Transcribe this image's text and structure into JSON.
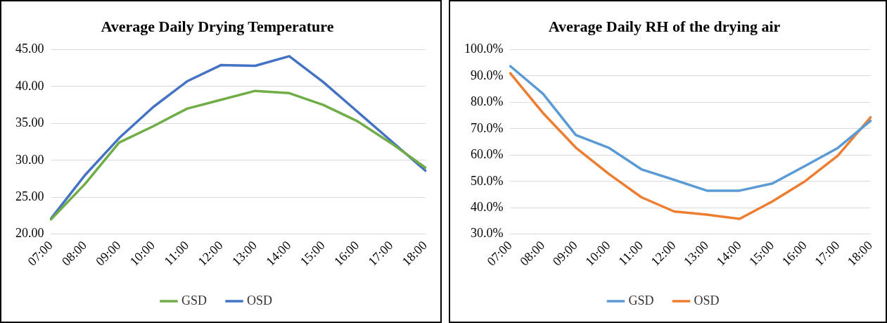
{
  "chart_data": [
    {
      "type": "line",
      "title": "Average Daily Drying Temperature",
      "categories": [
        "07:00",
        "08:00",
        "09:00",
        "10:00",
        "11:00",
        "12:00",
        "13:00",
        "14:00",
        "15:00",
        "16:00",
        "17:00",
        "18:00"
      ],
      "series": [
        {
          "name": "GSD",
          "color": "#70ad47",
          "values": [
            22.0,
            26.8,
            32.4,
            34.6,
            37.0,
            38.2,
            39.4,
            39.1,
            37.5,
            35.3,
            32.3,
            29.0
          ]
        },
        {
          "name": "OSD",
          "color": "#4472c4",
          "values": [
            22.1,
            28.0,
            33.0,
            37.2,
            40.7,
            42.9,
            42.8,
            44.1,
            40.6,
            36.6,
            32.6,
            28.6
          ]
        }
      ],
      "ylim": [
        20,
        45
      ],
      "yticks": [
        {
          "value": 20,
          "label": "20.00"
        },
        {
          "value": 25,
          "label": "25.00"
        },
        {
          "value": 30,
          "label": "30.00"
        },
        {
          "value": 35,
          "label": "35.00"
        },
        {
          "value": 40,
          "label": "40.00"
        },
        {
          "value": 45,
          "label": "45.00"
        }
      ],
      "grid": "y",
      "legend": "bottom",
      "marker": "none",
      "line_style": "solid"
    },
    {
      "type": "line",
      "title": "Average Daily RH of the drying air",
      "categories": [
        "07:00",
        "08:00",
        "09:00",
        "10:00",
        "11:00",
        "12:00",
        "13:00",
        "14:00",
        "15:00",
        "16:00",
        "17:00",
        "18:00"
      ],
      "series": [
        {
          "name": "GSD",
          "color": "#5b9bd5",
          "values": [
            93.7,
            83.2,
            67.6,
            62.8,
            54.6,
            50.6,
            46.5,
            46.5,
            49.2,
            55.9,
            62.7,
            73.0
          ]
        },
        {
          "name": "OSD",
          "color": "#ed7d31",
          "values": [
            91.0,
            75.9,
            62.8,
            52.9,
            44.0,
            38.6,
            37.4,
            35.8,
            42.4,
            50.1,
            59.8,
            74.3
          ]
        }
      ],
      "ylim": [
        30,
        100
      ],
      "yticks": [
        {
          "value": 30,
          "label": "30.0%"
        },
        {
          "value": 40,
          "label": "40.0%"
        },
        {
          "value": 50,
          "label": "50.0%"
        },
        {
          "value": 60,
          "label": "60.0%"
        },
        {
          "value": 70,
          "label": "70.0%"
        },
        {
          "value": 80,
          "label": "80.0%"
        },
        {
          "value": 90,
          "label": "90.0%"
        },
        {
          "value": 100,
          "label": "100.0%"
        }
      ],
      "grid": "y",
      "legend": "bottom",
      "marker": "none",
      "line_style": "solid"
    }
  ]
}
